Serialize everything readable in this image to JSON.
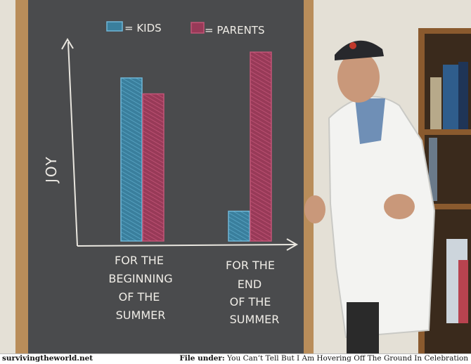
{
  "chart_data": {
    "type": "bar",
    "ylabel": "JOY",
    "categories": [
      "FOR THE BEGINNING OF THE SUMMER",
      "FOR THE END OF THE SUMMER"
    ],
    "category_lines": [
      [
        "FOR THE",
        "BEGINNING",
        "OF THE",
        "SUMMER"
      ],
      [
        "FOR THE",
        "END",
        "OF THE",
        "SUMMER"
      ]
    ],
    "series": [
      {
        "name": "KIDS",
        "values": [
          82,
          15
        ],
        "color": "#3f8cad"
      },
      {
        "name": "PARENTS",
        "values": [
          74,
          95
        ],
        "color": "#a43f60"
      }
    ],
    "legend_labels": [
      "= KIDS",
      "= PARENTS"
    ],
    "ylim": [
      0,
      100
    ],
    "legend_position": "top"
  },
  "footer": {
    "site": "survivingtheworld.net",
    "file_under_label": "File under:",
    "file_under_text": "You Can’t Tell But I Am Hovering Off The Ground In Celebration"
  }
}
